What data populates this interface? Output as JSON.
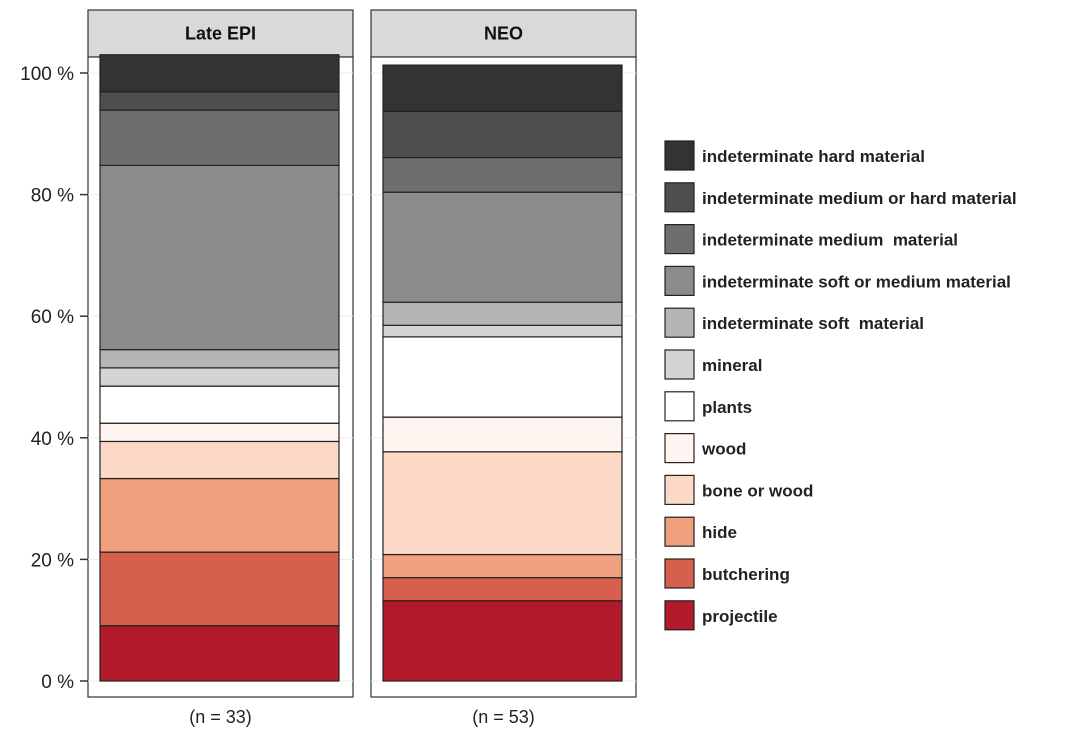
{
  "chart_data": {
    "type": "bar",
    "stacked": true,
    "percent": true,
    "ylim": [
      0,
      100
    ],
    "y_ticks": [
      "0 %",
      "20 %",
      "40 %",
      "60 %",
      "80 %",
      "100 %"
    ],
    "grid": true,
    "legend_placement": "right",
    "panels": [
      {
        "title": "Late EPI",
        "n_label": "(n = 33)"
      },
      {
        "title": "NEO",
        "n_label": "(n = 53)"
      }
    ],
    "series": [
      {
        "name": "projectile",
        "color": "#b11a2b",
        "values": [
          9.1,
          13.2
        ]
      },
      {
        "name": "butchering",
        "color": "#d6604d",
        "values": [
          12.1,
          3.8
        ]
      },
      {
        "name": "hide",
        "color": "#f0a07e",
        "values": [
          12.1,
          3.8
        ]
      },
      {
        "name": "bone or wood",
        "color": "#fcd9c7",
        "values": [
          6.1,
          16.9
        ]
      },
      {
        "name": "wood",
        "color": "#fff5f0",
        "values": [
          3.0,
          5.7
        ]
      },
      {
        "name": "plants",
        "color": "#ffffff",
        "values": [
          6.1,
          13.2
        ]
      },
      {
        "name": "mineral",
        "color": "#d4d4d4",
        "values": [
          3.0,
          1.9
        ]
      },
      {
        "name": "indeterminate soft  material",
        "color": "#b5b5b5",
        "values": [
          3.0,
          3.8
        ]
      },
      {
        "name": "indeterminate soft or medium material",
        "color": "#8c8c8c",
        "values": [
          30.3,
          18.1
        ]
      },
      {
        "name": "indeterminate medium  material",
        "color": "#6e6e6e",
        "values": [
          9.1,
          5.7
        ]
      },
      {
        "name": "indeterminate medium or hard material",
        "color": "#4e4e4e",
        "values": [
          3.0,
          7.6
        ]
      },
      {
        "name": "indeterminate hard material",
        "color": "#333333",
        "values": [
          6.1,
          7.6
        ]
      }
    ]
  }
}
